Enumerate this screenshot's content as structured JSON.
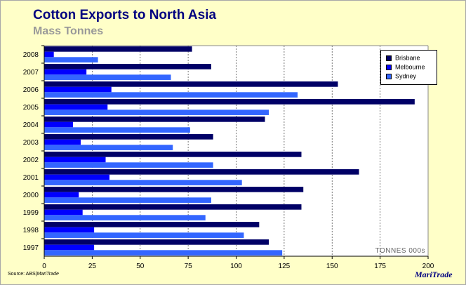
{
  "chart_data": {
    "type": "bar",
    "orientation": "horizontal",
    "title": "Cotton Exports to North Asia",
    "subtitle": "Mass Tonnes",
    "xlabel": "",
    "ylabel": "",
    "unit_label": "TONNES 000s",
    "xlim": [
      0,
      200
    ],
    "x_ticks": [
      0,
      25,
      50,
      75,
      100,
      125,
      150,
      175,
      200
    ],
    "categories": [
      "2008",
      "2007",
      "2006",
      "2005",
      "2004",
      "2003",
      "2002",
      "2001",
      "2000",
      "1999",
      "1998",
      "1997"
    ],
    "series": [
      {
        "name": "Brisbane",
        "color": "#000066",
        "values": [
          77,
          87,
          153,
          193,
          115,
          88,
          134,
          164,
          135,
          134,
          112,
          117
        ]
      },
      {
        "name": "Melbourne",
        "color": "#0000ff",
        "values": [
          5,
          22,
          35,
          33,
          15,
          19,
          32,
          34,
          18,
          20,
          26,
          26
        ]
      },
      {
        "name": "Sydney",
        "color": "#3366ff",
        "values": [
          28,
          66,
          132,
          117,
          76,
          67,
          88,
          103,
          87,
          84,
          104,
          124
        ]
      }
    ],
    "grid": true,
    "grid_axis": "x",
    "legend_position": "top-right",
    "source_label": "Source: ABS",
    "source_brand": "MariTrade",
    "brand": "MariTrade"
  }
}
